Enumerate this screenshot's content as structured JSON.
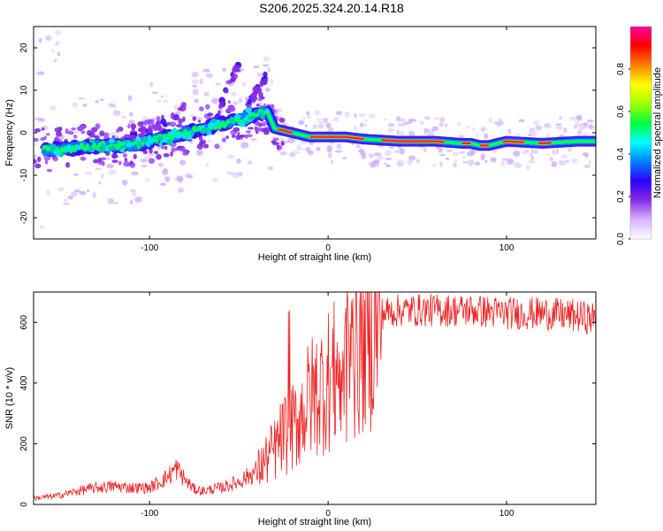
{
  "title": "S206.2025.324.20.14.R18",
  "chart_data": [
    {
      "type": "heatmap",
      "xlabel": "Height of straight line (km)",
      "ylabel": "Frequency (Hz)",
      "xlim": [
        -165,
        150
      ],
      "ylim": [
        -25,
        25
      ],
      "xticks": [
        -100,
        0,
        100
      ],
      "yticks": [
        -20,
        -10,
        0,
        10,
        20
      ],
      "colorbar": {
        "label": "Normalized spectral amplitude",
        "range": [
          0,
          1
        ],
        "ticks": [
          "0.0",
          "0.2",
          "0.4",
          "0.6",
          "0.8"
        ],
        "colors": [
          "#ffffff",
          "#d9b3ff",
          "#8a2be2",
          "#2b00ff",
          "#0080ff",
          "#00ffff",
          "#00ff40",
          "#a0ff00",
          "#ffff00",
          "#ff8000",
          "#ff0000",
          "#ff00a0"
        ]
      },
      "ridge": {
        "x": [
          -155,
          -140,
          -125,
          -110,
          -100,
          -90,
          -80,
          -70,
          -60,
          -50,
          -40,
          -34,
          -30,
          -20,
          -10,
          0,
          10,
          20,
          40,
          60,
          75,
          80,
          85,
          90,
          100,
          120,
          140,
          150
        ],
        "y": [
          -4,
          -3.5,
          -3,
          -3,
          -2,
          -1,
          0,
          1,
          2,
          3,
          4.5,
          5,
          1,
          0,
          -1,
          -1,
          -1,
          -1.5,
          -2,
          -2,
          -2.5,
          -2.5,
          -3,
          -3,
          -2,
          -2.5,
          -2,
          -2
        ]
      },
      "branches": [
        {
          "x": [
            -115,
            -105,
            -95,
            -85,
            -80
          ],
          "y": [
            -2,
            0,
            2,
            4,
            7
          ]
        },
        {
          "x": [
            -70,
            -65,
            -60,
            -55,
            -50
          ],
          "y": [
            -1,
            2,
            6,
            12,
            16
          ]
        },
        {
          "x": [
            -45,
            -40,
            -35
          ],
          "y": [
            6,
            10,
            13
          ]
        }
      ]
    },
    {
      "type": "line",
      "xlabel": "Height of straight line (km)",
      "ylabel": "SNR (10 * v/v)",
      "xlim": [
        -165,
        150
      ],
      "ylim": [
        0,
        700
      ],
      "xticks": [
        -100,
        0,
        100
      ],
      "yticks": [
        0,
        200,
        400,
        600
      ],
      "series": [
        {
          "name": "SNR",
          "color": "#ee2222",
          "x": [
            -165,
            -150,
            -140,
            -130,
            -120,
            -110,
            -100,
            -90,
            -85,
            -80,
            -75,
            -70,
            -60,
            -50,
            -40,
            -30,
            -25,
            -20,
            -15,
            -10,
            -5,
            0,
            5,
            10,
            15,
            20,
            25,
            30,
            40,
            60,
            80,
            100,
            120,
            140,
            150
          ],
          "y": [
            20,
            30,
            45,
            55,
            60,
            55,
            55,
            90,
            120,
            80,
            50,
            45,
            55,
            75,
            110,
            180,
            230,
            250,
            300,
            350,
            380,
            410,
            430,
            460,
            500,
            560,
            600,
            630,
            640,
            640,
            640,
            630,
            630,
            620,
            610
          ]
        }
      ]
    }
  ]
}
